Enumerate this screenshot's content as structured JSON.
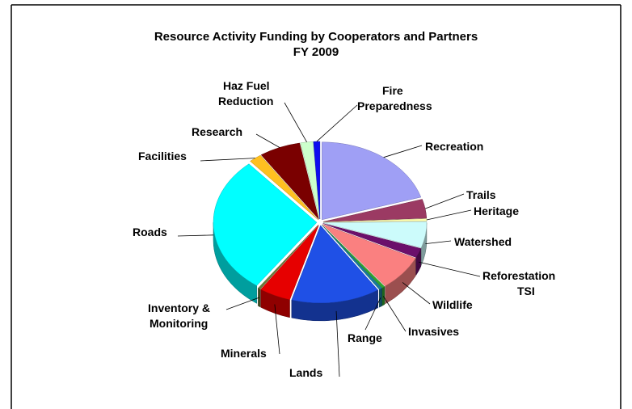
{
  "chart_data": {
    "type": "pie",
    "style": "3d-exploded",
    "title": "Resource Activity Funding by Cooperators and Partners",
    "subtitle": "FY 2009",
    "slices": [
      {
        "label": "Recreation",
        "value": 20.5,
        "color": "#9f9ff5"
      },
      {
        "label": "Trails",
        "value": 4.0,
        "color": "#9b3a63"
      },
      {
        "label": "Heritage",
        "value": 0.5,
        "color": "#ffffb0"
      },
      {
        "label": "Watershed",
        "value": 5.5,
        "color": "#ccfbfb"
      },
      {
        "label": "Reforestation TSI",
        "value": 2.0,
        "color": "#6b0f6b"
      },
      {
        "label": "Wildlife",
        "value": 7.5,
        "color": "#fa8080"
      },
      {
        "label": "Invasives",
        "value": 0.5,
        "color": "#2ea32e"
      },
      {
        "label": "Range",
        "value": 0.5,
        "color": "#1a7a9a"
      },
      {
        "label": "Lands",
        "value": 14.0,
        "color": "#1f50e6"
      },
      {
        "label": "Minerals",
        "value": 5.0,
        "color": "#e60000"
      },
      {
        "label": "Inventory & Monitoring",
        "value": 0.4,
        "color": "#6a7c3a"
      },
      {
        "label": "Roads",
        "value": 29.0,
        "color": "#00ffff"
      },
      {
        "label": "Facilities",
        "value": 2.0,
        "color": "#ffc020"
      },
      {
        "label": "Research",
        "value": 6.5,
        "color": "#7a0000"
      },
      {
        "label": "Haz Fuel Reduction",
        "value": 2.0,
        "color": "#ccffcc"
      },
      {
        "label": "Fire Preparedness",
        "value": 1.0,
        "color": "#0d0df0"
      }
    ]
  },
  "labels_display": {
    "recreation": "Recreation",
    "trails": "Trails",
    "heritage": "Heritage",
    "watershed": "Watershed",
    "reforestation_1": "Reforestation",
    "reforestation_2": "TSI",
    "wildlife": "Wildlife",
    "invasives": "Invasives",
    "range": "Range",
    "lands": "Lands",
    "minerals": "Minerals",
    "inventory_1": "Inventory &",
    "inventory_2": "Monitoring",
    "roads": "Roads",
    "facilities": "Facilities",
    "research": "Research",
    "hazfuel_1": "Haz Fuel",
    "hazfuel_2": "Reduction",
    "fire_1": "Fire",
    "fire_2": "Preparedness"
  }
}
